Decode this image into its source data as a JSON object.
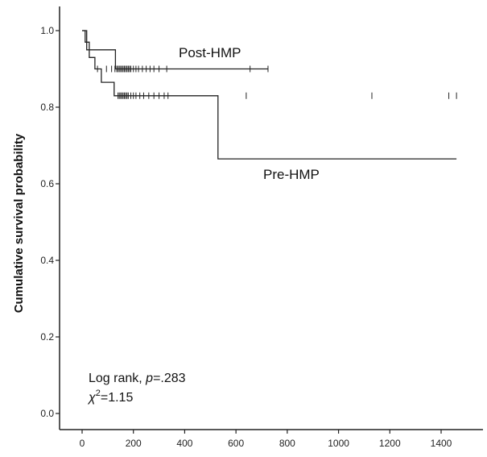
{
  "chart_data": {
    "type": "line",
    "chart_subtype": "kaplan-meier",
    "title": "",
    "xlabel": "",
    "ylabel": "Cumulative survival probability",
    "xlim": [
      -50,
      1550
    ],
    "ylim": [
      -0.02,
      1.07
    ],
    "x_ticks": [
      0,
      200,
      400,
      600,
      800,
      1000,
      1200,
      1400
    ],
    "x_tick_labels": [
      "0",
      "200",
      "400",
      "600",
      "800",
      "1000",
      "1200",
      "1400"
    ],
    "y_ticks": [
      0.0,
      0.2,
      0.4,
      0.6,
      0.8,
      1.0
    ],
    "y_tick_labels": [
      "0.0",
      "0.2",
      "0.4",
      "0.6",
      "0.8",
      "1.0"
    ],
    "grid": false,
    "legend": "none",
    "series": [
      {
        "name": "Post-HMP",
        "step_points": [
          [
            0,
            1.0
          ],
          [
            18,
            1.0
          ],
          [
            18,
            0.95
          ],
          [
            130,
            0.95
          ],
          [
            130,
            0.9
          ],
          [
            725,
            0.9
          ]
        ],
        "censor_x": [
          60,
          95,
          115,
          128,
          135,
          140,
          145,
          150,
          155,
          160,
          165,
          170,
          175,
          180,
          185,
          190,
          200,
          210,
          220,
          235,
          250,
          265,
          280,
          300,
          330,
          655,
          725
        ],
        "censor_y": 0.9
      },
      {
        "name": "Pre-HMP",
        "step_points": [
          [
            0,
            1.0
          ],
          [
            12,
            1.0
          ],
          [
            12,
            0.97
          ],
          [
            28,
            0.97
          ],
          [
            28,
            0.93
          ],
          [
            50,
            0.93
          ],
          [
            50,
            0.9
          ],
          [
            75,
            0.9
          ],
          [
            75,
            0.865
          ],
          [
            125,
            0.865
          ],
          [
            125,
            0.83
          ],
          [
            530,
            0.83
          ],
          [
            530,
            0.665
          ],
          [
            1460,
            0.665
          ]
        ],
        "censor_x": [
          140,
          145,
          150,
          155,
          160,
          165,
          170,
          175,
          180,
          190,
          200,
          210,
          225,
          240,
          260,
          280,
          300,
          320,
          335,
          640,
          1130,
          1430,
          1460
        ],
        "censor_y": 0.83
      }
    ],
    "annotations": [
      {
        "text_prefix": "Log rank, ",
        "p_symbol": "p",
        "text_value": "=.283"
      },
      {
        "chi_symbol": "χ",
        "superscript": "2",
        "text_value": "=1.15"
      }
    ]
  },
  "labels": {
    "post_hmp": "Post-HMP",
    "pre_hmp": "Pre-HMP"
  },
  "colors": {
    "line": "#222222",
    "axis": "#222222",
    "background": "#ffffff"
  }
}
